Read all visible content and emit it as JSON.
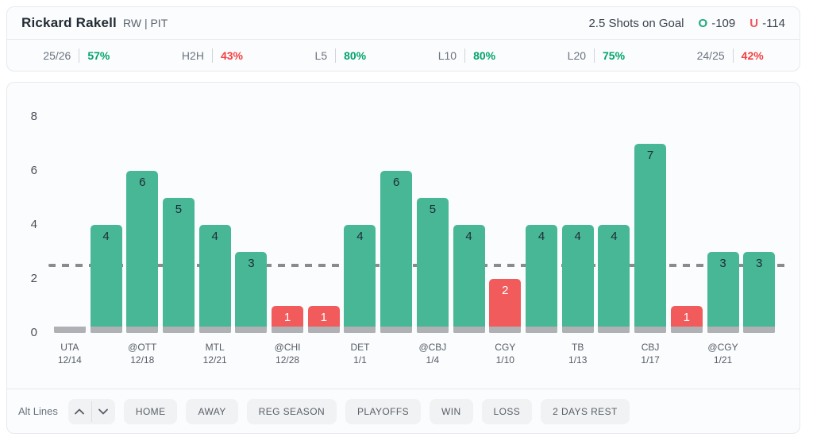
{
  "header": {
    "player_name": "Rickard Rakell",
    "position_team": "RW | PIT",
    "line_label": "2.5 Shots on Goal",
    "over_symbol": "O",
    "over_odds": "-109",
    "under_symbol": "U",
    "under_odds": "-114"
  },
  "stats": [
    {
      "label": "25/26",
      "value": "57%",
      "status": "pos"
    },
    {
      "label": "H2H",
      "value": "43%",
      "status": "neg"
    },
    {
      "label": "L5",
      "value": "80%",
      "status": "pos"
    },
    {
      "label": "L10",
      "value": "80%",
      "status": "pos"
    },
    {
      "label": "L20",
      "value": "75%",
      "status": "pos"
    },
    {
      "label": "24/25",
      "value": "42%",
      "status": "neg"
    }
  ],
  "chart_data": {
    "type": "bar",
    "title": "",
    "xlabel": "",
    "ylabel": "",
    "ylim": [
      0,
      8
    ],
    "yticks": [
      0,
      2,
      4,
      6,
      8
    ],
    "grid": false,
    "prop_line": 2.5,
    "games": [
      {
        "opponent": "UTA",
        "date": "12/14",
        "value": 0,
        "color": "gray"
      },
      {
        "opponent": "",
        "date": "",
        "value": 4,
        "color": "green"
      },
      {
        "opponent": "@OTT",
        "date": "12/18",
        "value": 6,
        "color": "green"
      },
      {
        "opponent": "",
        "date": "",
        "value": 5,
        "color": "green"
      },
      {
        "opponent": "MTL",
        "date": "12/21",
        "value": 4,
        "color": "green"
      },
      {
        "opponent": "",
        "date": "",
        "value": 3,
        "color": "green"
      },
      {
        "opponent": "@CHI",
        "date": "12/28",
        "value": 1,
        "color": "red"
      },
      {
        "opponent": "",
        "date": "",
        "value": 1,
        "color": "red"
      },
      {
        "opponent": "DET",
        "date": "1/1",
        "value": 4,
        "color": "green"
      },
      {
        "opponent": "",
        "date": "",
        "value": 6,
        "color": "green"
      },
      {
        "opponent": "@CBJ",
        "date": "1/4",
        "value": 5,
        "color": "green"
      },
      {
        "opponent": "",
        "date": "",
        "value": 4,
        "color": "green"
      },
      {
        "opponent": "CGY",
        "date": "1/10",
        "value": 2,
        "color": "red"
      },
      {
        "opponent": "",
        "date": "",
        "value": 4,
        "color": "green"
      },
      {
        "opponent": "TB",
        "date": "1/13",
        "value": 4,
        "color": "green"
      },
      {
        "opponent": "",
        "date": "",
        "value": 4,
        "color": "green"
      },
      {
        "opponent": "CBJ",
        "date": "1/17",
        "value": 7,
        "color": "green"
      },
      {
        "opponent": "",
        "date": "",
        "value": 1,
        "color": "red"
      },
      {
        "opponent": "@CGY",
        "date": "1/21",
        "value": 3,
        "color": "green"
      },
      {
        "opponent": "",
        "date": "",
        "value": 3,
        "color": "green"
      }
    ]
  },
  "controls": {
    "alt_lines_label": "Alt Lines",
    "filters": [
      "HOME",
      "AWAY",
      "REG SEASON",
      "PLAYOFFS",
      "WIN",
      "LOSS",
      "2 DAYS REST"
    ]
  },
  "colors": {
    "green_bar": "#47b795",
    "red_bar": "#f15b5b",
    "gray_bar": "#afb1b4",
    "positive_text": "#00a36c",
    "negative_text": "#f43f3f",
    "over_symbol": "#1ea97c",
    "under_symbol": "#f2545b",
    "dash_line": "#8b8b8b"
  }
}
